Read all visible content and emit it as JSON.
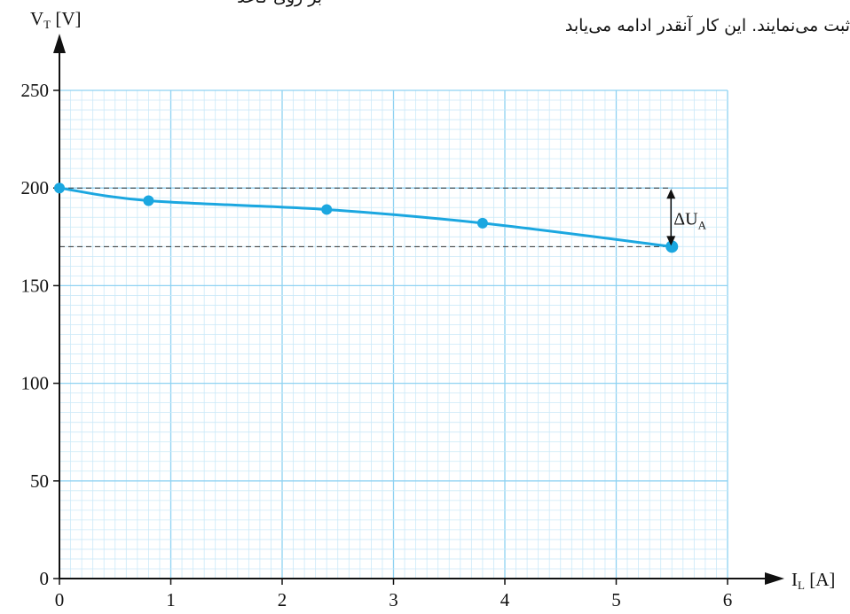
{
  "background_text": {
    "line1_fragment": "بر روی کاغذ",
    "line2": "ثبت می‌نمایند. این کار آنقدر ادامه می‌یابد"
  },
  "chart_data": {
    "type": "line",
    "x": [
      0,
      0.8,
      2.4,
      3.8,
      5.5
    ],
    "y": [
      200,
      193.5,
      189,
      182,
      170
    ],
    "xlim": [
      0,
      6
    ],
    "ylim": [
      0,
      250
    ],
    "xticks": [
      "0",
      "1",
      "2",
      "3",
      "4",
      "5",
      "6"
    ],
    "yticks": [
      "0",
      "50",
      "100",
      "150",
      "200",
      "250"
    ],
    "xlabel": {
      "main": "I",
      "sub": "L",
      "unit": " [A]"
    },
    "ylabel": {
      "main": "V",
      "sub": "T",
      "unit": " [V]"
    },
    "grid": true,
    "reference_lines_y": [
      200,
      170
    ],
    "annotation": {
      "main": "ΔU",
      "sub": "A",
      "from": 200,
      "to": 170,
      "x": 5.5
    },
    "colors": {
      "curve": "#1ba7e0",
      "grid_major": "#8fd2f2",
      "grid_minor": "#cbe9f8",
      "axis": "#111111",
      "dashed": "#333333"
    }
  }
}
